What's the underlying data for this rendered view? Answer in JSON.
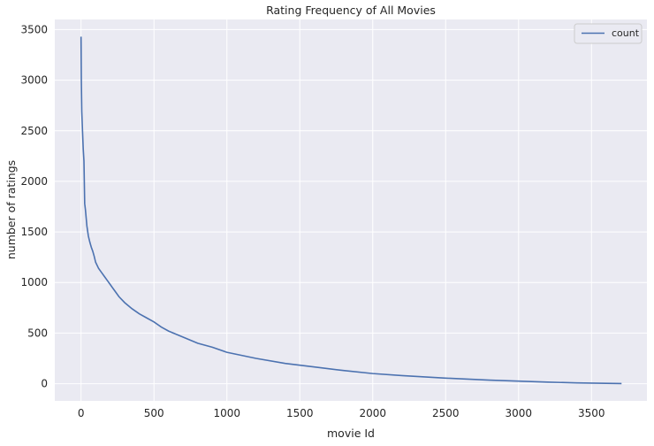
{
  "chart_data": {
    "type": "line",
    "title": "Rating Frequency of All Movies",
    "xlabel": "movie Id",
    "ylabel": "number of ratings",
    "xlim": [
      -180,
      3880
    ],
    "ylim": [
      -170,
      3600
    ],
    "xticks": [
      0,
      500,
      1000,
      1500,
      2000,
      2500,
      3000,
      3500
    ],
    "yticks": [
      0,
      500,
      1000,
      1500,
      2000,
      2500,
      3000,
      3500
    ],
    "grid": true,
    "legend": "top-right",
    "colors": {
      "background": "#eaeaf2",
      "grid": "#ffffff",
      "line": "#4c72b0"
    },
    "series": [
      {
        "name": "count",
        "x": [
          0,
          2,
          5,
          10,
          15,
          20,
          25,
          30,
          40,
          50,
          60,
          70,
          80,
          90,
          100,
          120,
          140,
          160,
          180,
          200,
          230,
          260,
          300,
          350,
          400,
          450,
          500,
          550,
          600,
          700,
          800,
          900,
          1000,
          1200,
          1400,
          1600,
          1800,
          2000,
          2200,
          2500,
          2800,
          3000,
          3200,
          3400,
          3600,
          3706
        ],
        "y": [
          3430,
          3000,
          2690,
          2500,
          2320,
          2200,
          1780,
          1720,
          1560,
          1460,
          1400,
          1350,
          1310,
          1260,
          1200,
          1140,
          1100,
          1060,
          1020,
          980,
          920,
          860,
          800,
          740,
          690,
          650,
          610,
          560,
          520,
          460,
          400,
          360,
          310,
          250,
          200,
          165,
          130,
          100,
          80,
          55,
          35,
          25,
          15,
          8,
          3,
          1
        ]
      }
    ]
  }
}
